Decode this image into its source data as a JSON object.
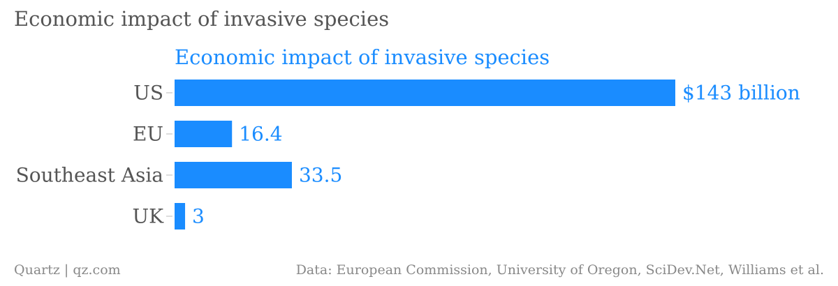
{
  "page": {
    "title": "Economic impact of invasive species"
  },
  "chart_data": {
    "type": "bar",
    "orientation": "horizontal",
    "title": "Economic impact of invasive species",
    "categories": [
      "US",
      "EU",
      "Southeast Asia",
      "UK"
    ],
    "values": [
      143,
      16.4,
      33.5,
      3
    ],
    "value_labels": [
      "$143 billion",
      "16.4",
      "33.5",
      "3"
    ],
    "xlim": [
      0,
      143
    ],
    "grid": false,
    "bar_color": "#1a8cff",
    "label_color": "#1a8cff"
  },
  "footer": {
    "source": "Quartz | qz.com",
    "data": "Data: European Commission, University of Oregon, SciDev.Net, Williams et al."
  }
}
